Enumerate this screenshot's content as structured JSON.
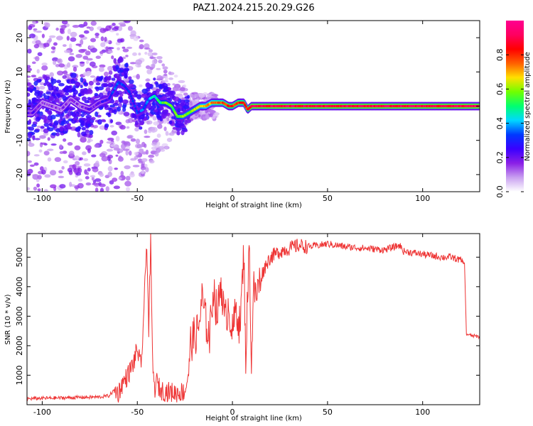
{
  "title": "PAZ1.2024.215.20.29.G26",
  "chart_data": [
    {
      "type": "heatmap",
      "xlabel": "Height of straight line (km)",
      "ylabel": "Frequency (Hz)",
      "xlim": [
        -108,
        130
      ],
      "ylim": [
        -25,
        25
      ],
      "xticks": [
        -100,
        -50,
        0,
        50,
        100
      ],
      "yticks": [
        -20,
        -10,
        0,
        10,
        20
      ],
      "grid": false,
      "ridge": {
        "x": [
          -105,
          -100,
          -95,
          -90,
          -85,
          -80,
          -75,
          -70,
          -65,
          -60,
          -57,
          -54,
          -50,
          -47,
          -44,
          -41,
          -38,
          -35,
          -32,
          -29,
          -26,
          -23,
          -20,
          -17,
          -14,
          -11,
          -8,
          -5,
          -2,
          0,
          3,
          6,
          8,
          10,
          14,
          20,
          30,
          50,
          70,
          90,
          110,
          130
        ],
        "y": [
          -2,
          1,
          0,
          -1,
          2,
          0,
          -1,
          1,
          2,
          7,
          6,
          4,
          -2,
          -1,
          2,
          3,
          1,
          1,
          0,
          -3,
          -3,
          -2,
          -1,
          0,
          0,
          1,
          1,
          1,
          0,
          0,
          1,
          1,
          -1,
          0,
          0,
          0,
          0,
          0,
          0,
          0,
          0,
          0
        ],
        "amplitude": [
          0.2,
          0.15,
          0.15,
          0.15,
          0.15,
          0.15,
          0.2,
          0.2,
          0.25,
          0.35,
          0.3,
          0.3,
          0.3,
          0.35,
          0.4,
          0.45,
          0.5,
          0.55,
          0.55,
          0.55,
          0.6,
          0.6,
          0.6,
          0.65,
          0.7,
          0.7,
          0.75,
          0.75,
          0.8,
          0.8,
          0.8,
          0.8,
          0.8,
          0.9,
          0.9,
          0.9,
          0.9,
          0.9,
          0.9,
          0.9,
          0.9,
          0.9
        ]
      },
      "colorbar": {
        "label": "Normalized spectral amplitude",
        "ticks": [
          0.0,
          0.2,
          0.4,
          0.6,
          0.8
        ],
        "tick_labels": [
          "0.0",
          "0.2",
          "0.4",
          "0.6",
          "0.8"
        ],
        "range": [
          0,
          1
        ],
        "colors": [
          "#ffffff",
          "#c9a0f0",
          "#8a1fe6",
          "#3a00ff",
          "#0038ff",
          "#00d8ff",
          "#00ff70",
          "#70ff00",
          "#ffe000",
          "#ff6000",
          "#ff0000",
          "#ff0060",
          "#ff0090"
        ]
      }
    },
    {
      "type": "line",
      "xlabel": "Height of straight line (km)",
      "ylabel": "SNR (10 * v/v)",
      "xlim": [
        -108,
        130
      ],
      "ylim": [
        0,
        5800
      ],
      "xticks": [
        -100,
        -50,
        0,
        50,
        100
      ],
      "yticks": [
        1000,
        2000,
        3000,
        4000,
        5000
      ],
      "grid": false,
      "color": "#ee3333",
      "x": [
        -108,
        -100,
        -90,
        -80,
        -70,
        -65,
        -62,
        -60,
        -58,
        -55,
        -52,
        -50,
        -48,
        -46,
        -45,
        -44,
        -43,
        -42,
        -41,
        -40,
        -38,
        -35,
        -30,
        -25,
        -23,
        -22,
        -20,
        -18,
        -16,
        -14,
        -12,
        -10,
        -8,
        -6,
        -4,
        -2,
        0,
        2,
        4,
        6,
        7,
        8,
        9,
        10,
        11,
        12,
        14,
        16,
        18,
        20,
        25,
        30,
        35,
        40,
        45,
        50,
        55,
        60,
        70,
        80,
        88,
        90,
        95,
        100,
        110,
        115,
        120,
        121,
        122,
        123,
        125,
        130
      ],
      "y": [
        200,
        220,
        230,
        250,
        260,
        300,
        500,
        400,
        700,
        1000,
        1400,
        1900,
        1200,
        4000,
        5600,
        2500,
        5500,
        1500,
        500,
        800,
        500,
        450,
        400,
        450,
        1100,
        2100,
        2300,
        2500,
        3600,
        2800,
        2300,
        4000,
        3000,
        4200,
        2800,
        3400,
        2400,
        3300,
        2600,
        5200,
        1500,
        3800,
        5400,
        1000,
        4200,
        3600,
        4100,
        4500,
        4800,
        5000,
        5200,
        5300,
        5400,
        5350,
        5400,
        5450,
        5400,
        5350,
        5300,
        5250,
        5400,
        5200,
        5150,
        5100,
        5000,
        5000,
        4900,
        4850,
        4800,
        2400,
        2350,
        2300
      ]
    }
  ]
}
